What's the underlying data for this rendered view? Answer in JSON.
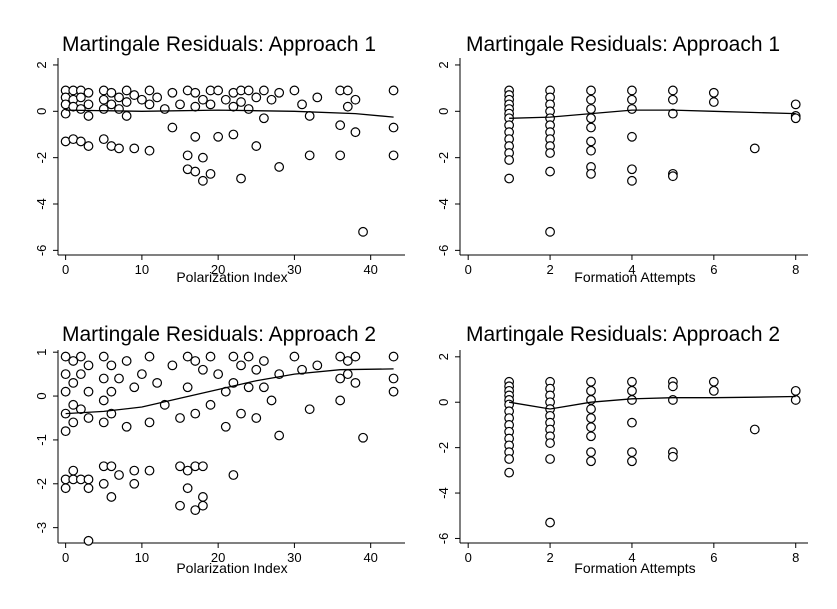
{
  "chart_data": [
    {
      "type": "scatter",
      "title": "Martingale Residuals: Approach 1",
      "xlabel": "Polarization Index",
      "ylabel": "",
      "xlim": [
        -1,
        44.5
      ],
      "ylim": [
        -6.2,
        2.3
      ],
      "xticks": [
        0,
        10,
        20,
        30,
        40
      ],
      "yticks": [
        2,
        0,
        -2,
        -4,
        -6
      ],
      "points": [
        [
          0,
          0.9
        ],
        [
          0,
          0.6
        ],
        [
          0,
          0.3
        ],
        [
          0,
          -0.1
        ],
        [
          0,
          -1.3
        ],
        [
          1,
          0.9
        ],
        [
          1,
          0.5
        ],
        [
          1,
          0.2
        ],
        [
          1,
          -1.2
        ],
        [
          2,
          0.9
        ],
        [
          2,
          0.6
        ],
        [
          2,
          0.1
        ],
        [
          2,
          -1.3
        ],
        [
          3,
          0.8
        ],
        [
          3,
          0.3
        ],
        [
          3,
          -0.2
        ],
        [
          3,
          -1.5
        ],
        [
          5,
          0.9
        ],
        [
          5,
          0.5
        ],
        [
          5,
          0.1
        ],
        [
          5,
          -1.2
        ],
        [
          6,
          0.8
        ],
        [
          6,
          0.3
        ],
        [
          6,
          -1.5
        ],
        [
          7,
          0.6
        ],
        [
          7,
          0.1
        ],
        [
          7,
          -1.6
        ],
        [
          8,
          0.9
        ],
        [
          8,
          0.4
        ],
        [
          8,
          -0.2
        ],
        [
          9,
          0.7
        ],
        [
          9,
          -1.6
        ],
        [
          10,
          0.5
        ],
        [
          11,
          0.9
        ],
        [
          11,
          0.3
        ],
        [
          11,
          -1.7
        ],
        [
          12,
          0.6
        ],
        [
          13,
          0.1
        ],
        [
          14,
          0.8
        ],
        [
          14,
          -0.7
        ],
        [
          15,
          0.3
        ],
        [
          16,
          0.9
        ],
        [
          16,
          -1.9
        ],
        [
          16,
          -2.5
        ],
        [
          17,
          0.8
        ],
        [
          17,
          0.2
        ],
        [
          17,
          -2.6
        ],
        [
          17,
          -1.1
        ],
        [
          18,
          0.5
        ],
        [
          18,
          -2.0
        ],
        [
          18,
          -3.0
        ],
        [
          19,
          0.9
        ],
        [
          19,
          0.3
        ],
        [
          19,
          -2.7
        ],
        [
          20,
          0.9
        ],
        [
          20,
          -1.1
        ],
        [
          21,
          0.5
        ],
        [
          22,
          0.8
        ],
        [
          22,
          0.2
        ],
        [
          22,
          -1.0
        ],
        [
          23,
          0.9
        ],
        [
          23,
          0.4
        ],
        [
          23,
          -2.9
        ],
        [
          24,
          0.9
        ],
        [
          24,
          0.1
        ],
        [
          25,
          0.6
        ],
        [
          25,
          -1.5
        ],
        [
          26,
          0.9
        ],
        [
          26,
          -0.3
        ],
        [
          27,
          0.5
        ],
        [
          28,
          0.8
        ],
        [
          28,
          -2.4
        ],
        [
          30,
          0.9
        ],
        [
          31,
          0.3
        ],
        [
          32,
          -0.2
        ],
        [
          32,
          -1.9
        ],
        [
          33,
          0.6
        ],
        [
          36,
          0.9
        ],
        [
          36,
          -0.6
        ],
        [
          36,
          -1.9
        ],
        [
          37,
          0.9
        ],
        [
          37,
          0.2
        ],
        [
          38,
          0.5
        ],
        [
          38,
          -0.9
        ],
        [
          39,
          -5.2
        ],
        [
          43,
          0.9
        ],
        [
          43,
          -0.7
        ],
        [
          43,
          -1.9
        ]
      ],
      "fit": [
        [
          0,
          0.05
        ],
        [
          10,
          0.0
        ],
        [
          20,
          0.05
        ],
        [
          30,
          0.0
        ],
        [
          38,
          -0.1
        ],
        [
          43,
          -0.25
        ]
      ]
    },
    {
      "type": "scatter",
      "title": "Martingale Residuals: Approach 1",
      "xlabel": "Formation Attempts",
      "ylabel": "",
      "xlim": [
        -0.2,
        8.3
      ],
      "ylim": [
        -6.2,
        2.3
      ],
      "xticks": [
        0,
        2,
        4,
        6,
        8
      ],
      "yticks": [
        2,
        0,
        -2,
        -4,
        -6
      ],
      "points": [
        [
          1,
          0.9
        ],
        [
          1,
          0.7
        ],
        [
          1,
          0.5
        ],
        [
          1,
          0.3
        ],
        [
          1,
          0.1
        ],
        [
          1,
          -0.1
        ],
        [
          1,
          -0.3
        ],
        [
          1,
          -0.6
        ],
        [
          1,
          -0.9
        ],
        [
          1,
          -1.2
        ],
        [
          1,
          -1.5
        ],
        [
          1,
          -1.8
        ],
        [
          1,
          -2.1
        ],
        [
          1,
          -2.9
        ],
        [
          2,
          0.9
        ],
        [
          2,
          0.6
        ],
        [
          2,
          0.3
        ],
        [
          2,
          0.0
        ],
        [
          2,
          -0.3
        ],
        [
          2,
          -0.6
        ],
        [
          2,
          -0.9
        ],
        [
          2,
          -1.2
        ],
        [
          2,
          -1.5
        ],
        [
          2,
          -1.8
        ],
        [
          2,
          -2.6
        ],
        [
          2,
          -5.2
        ],
        [
          3,
          0.9
        ],
        [
          3,
          0.5
        ],
        [
          3,
          0.1
        ],
        [
          3,
          -0.3
        ],
        [
          3,
          -0.7
        ],
        [
          3,
          -1.3
        ],
        [
          3,
          -1.7
        ],
        [
          3,
          -2.4
        ],
        [
          3,
          -2.7
        ],
        [
          4,
          0.9
        ],
        [
          4,
          0.5
        ],
        [
          4,
          0.1
        ],
        [
          4,
          -1.1
        ],
        [
          4,
          -2.5
        ],
        [
          4,
          -3.0
        ],
        [
          5,
          0.9
        ],
        [
          5,
          0.5
        ],
        [
          5,
          -0.1
        ],
        [
          5,
          -2.7
        ],
        [
          5,
          -2.8
        ],
        [
          6,
          0.8
        ],
        [
          6,
          0.4
        ],
        [
          7,
          -1.6
        ],
        [
          8,
          0.3
        ],
        [
          8,
          -0.2
        ],
        [
          8,
          -0.3
        ]
      ],
      "fit": [
        [
          1,
          -0.3
        ],
        [
          2,
          -0.25
        ],
        [
          3,
          -0.1
        ],
        [
          4,
          0.05
        ],
        [
          5,
          0.05
        ],
        [
          6,
          0.0
        ],
        [
          7,
          -0.05
        ],
        [
          8,
          -0.1
        ]
      ]
    },
    {
      "type": "scatter",
      "title": "Martingale Residuals: Approach 2",
      "xlabel": "Polarization Index",
      "ylabel": "",
      "xlim": [
        -1,
        44.5
      ],
      "ylim": [
        -3.35,
        1.05
      ],
      "xticks": [
        0,
        10,
        20,
        30,
        40
      ],
      "yticks": [
        1,
        0,
        -1,
        -2,
        -3
      ],
      "points": [
        [
          0,
          0.9
        ],
        [
          0,
          0.5
        ],
        [
          0,
          0.1
        ],
        [
          0,
          -0.4
        ],
        [
          0,
          -0.8
        ],
        [
          0,
          -1.9
        ],
        [
          0,
          -2.1
        ],
        [
          1,
          0.8
        ],
        [
          1,
          0.3
        ],
        [
          1,
          -0.2
        ],
        [
          1,
          -0.6
        ],
        [
          1,
          -1.7
        ],
        [
          1,
          -1.9
        ],
        [
          2,
          0.9
        ],
        [
          2,
          0.5
        ],
        [
          2,
          -0.3
        ],
        [
          2,
          -1.9
        ],
        [
          3,
          0.7
        ],
        [
          3,
          0.1
        ],
        [
          3,
          -0.5
        ],
        [
          3,
          -1.9
        ],
        [
          3,
          -2.1
        ],
        [
          3,
          -3.3
        ],
        [
          5,
          0.9
        ],
        [
          5,
          0.4
        ],
        [
          5,
          -0.1
        ],
        [
          5,
          -0.6
        ],
        [
          5,
          -1.6
        ],
        [
          5,
          -2.0
        ],
        [
          6,
          0.7
        ],
        [
          6,
          0.1
        ],
        [
          6,
          -0.4
        ],
        [
          6,
          -1.6
        ],
        [
          6,
          -2.3
        ],
        [
          7,
          0.4
        ],
        [
          7,
          -1.8
        ],
        [
          8,
          0.8
        ],
        [
          8,
          -0.7
        ],
        [
          9,
          0.2
        ],
        [
          9,
          -1.7
        ],
        [
          9,
          -2.0
        ],
        [
          10,
          0.5
        ],
        [
          11,
          0.9
        ],
        [
          11,
          -0.6
        ],
        [
          11,
          -1.7
        ],
        [
          12,
          0.3
        ],
        [
          13,
          -0.2
        ],
        [
          14,
          0.7
        ],
        [
          15,
          -0.5
        ],
        [
          15,
          -1.6
        ],
        [
          15,
          -2.5
        ],
        [
          16,
          0.9
        ],
        [
          16,
          0.2
        ],
        [
          16,
          -1.7
        ],
        [
          16,
          -2.1
        ],
        [
          17,
          0.8
        ],
        [
          17,
          -0.4
        ],
        [
          17,
          -2.6
        ],
        [
          17,
          -1.6
        ],
        [
          18,
          0.6
        ],
        [
          18,
          -2.3
        ],
        [
          18,
          -1.6
        ],
        [
          18,
          -2.5
        ],
        [
          19,
          0.9
        ],
        [
          19,
          -0.2
        ],
        [
          20,
          0.5
        ],
        [
          21,
          0.1
        ],
        [
          21,
          -0.7
        ],
        [
          22,
          0.9
        ],
        [
          22,
          0.3
        ],
        [
          22,
          -1.8
        ],
        [
          23,
          0.7
        ],
        [
          23,
          -0.4
        ],
        [
          24,
          0.9
        ],
        [
          24,
          0.2
        ],
        [
          25,
          0.6
        ],
        [
          25,
          -0.5
        ],
        [
          26,
          0.8
        ],
        [
          26,
          0.2
        ],
        [
          27,
          -0.1
        ],
        [
          28,
          0.5
        ],
        [
          28,
          -0.9
        ],
        [
          30,
          0.9
        ],
        [
          31,
          0.6
        ],
        [
          32,
          -0.3
        ],
        [
          33,
          0.7
        ],
        [
          36,
          0.9
        ],
        [
          36,
          0.4
        ],
        [
          36,
          -0.1
        ],
        [
          37,
          0.8
        ],
        [
          37,
          0.5
        ],
        [
          38,
          0.9
        ],
        [
          38,
          0.3
        ],
        [
          39,
          -0.95
        ],
        [
          43,
          0.9
        ],
        [
          43,
          0.4
        ],
        [
          43,
          0.1
        ]
      ],
      "fit": [
        [
          0,
          -0.4
        ],
        [
          5,
          -0.35
        ],
        [
          10,
          -0.25
        ],
        [
          15,
          -0.05
        ],
        [
          20,
          0.15
        ],
        [
          25,
          0.35
        ],
        [
          30,
          0.5
        ],
        [
          36,
          0.6
        ],
        [
          43,
          0.62
        ]
      ]
    },
    {
      "type": "scatter",
      "title": "Martingale Residuals: Approach 2",
      "xlabel": "Formation Attempts",
      "ylabel": "",
      "xlim": [
        -0.2,
        8.3
      ],
      "ylim": [
        -6.2,
        2.3
      ],
      "xticks": [
        0,
        2,
        4,
        6,
        8
      ],
      "yticks": [
        2,
        0,
        -2,
        -4,
        -6
      ],
      "points": [
        [
          1,
          0.9
        ],
        [
          1,
          0.7
        ],
        [
          1,
          0.5
        ],
        [
          1,
          0.3
        ],
        [
          1,
          0.1
        ],
        [
          1,
          -0.1
        ],
        [
          1,
          -0.4
        ],
        [
          1,
          -0.7
        ],
        [
          1,
          -1.0
        ],
        [
          1,
          -1.3
        ],
        [
          1,
          -1.6
        ],
        [
          1,
          -1.9
        ],
        [
          1,
          -2.2
        ],
        [
          1,
          -2.5
        ],
        [
          1,
          -3.1
        ],
        [
          2,
          0.9
        ],
        [
          2,
          0.6
        ],
        [
          2,
          0.3
        ],
        [
          2,
          0.0
        ],
        [
          2,
          -0.3
        ],
        [
          2,
          -0.6
        ],
        [
          2,
          -0.9
        ],
        [
          2,
          -1.2
        ],
        [
          2,
          -1.5
        ],
        [
          2,
          -1.8
        ],
        [
          2,
          -2.5
        ],
        [
          2,
          -5.3
        ],
        [
          3,
          0.9
        ],
        [
          3,
          0.5
        ],
        [
          3,
          0.1
        ],
        [
          3,
          -0.3
        ],
        [
          3,
          -0.7
        ],
        [
          3,
          -1.1
        ],
        [
          3,
          -1.5
        ],
        [
          3,
          -2.2
        ],
        [
          3,
          -2.6
        ],
        [
          4,
          0.9
        ],
        [
          4,
          0.5
        ],
        [
          4,
          0.1
        ],
        [
          4,
          -0.9
        ],
        [
          4,
          -2.2
        ],
        [
          4,
          -2.6
        ],
        [
          5,
          0.9
        ],
        [
          5,
          0.7
        ],
        [
          5,
          0.1
        ],
        [
          5,
          -2.2
        ],
        [
          5,
          -2.4
        ],
        [
          6,
          0.9
        ],
        [
          6,
          0.5
        ],
        [
          7,
          -1.2
        ],
        [
          8,
          0.5
        ],
        [
          8,
          0.1
        ]
      ],
      "fit": [
        [
          1,
          0.0
        ],
        [
          2,
          -0.3
        ],
        [
          3,
          0.0
        ],
        [
          4,
          0.15
        ],
        [
          5,
          0.2
        ],
        [
          6,
          0.2
        ],
        [
          7,
          0.22
        ],
        [
          8,
          0.25
        ]
      ]
    }
  ]
}
